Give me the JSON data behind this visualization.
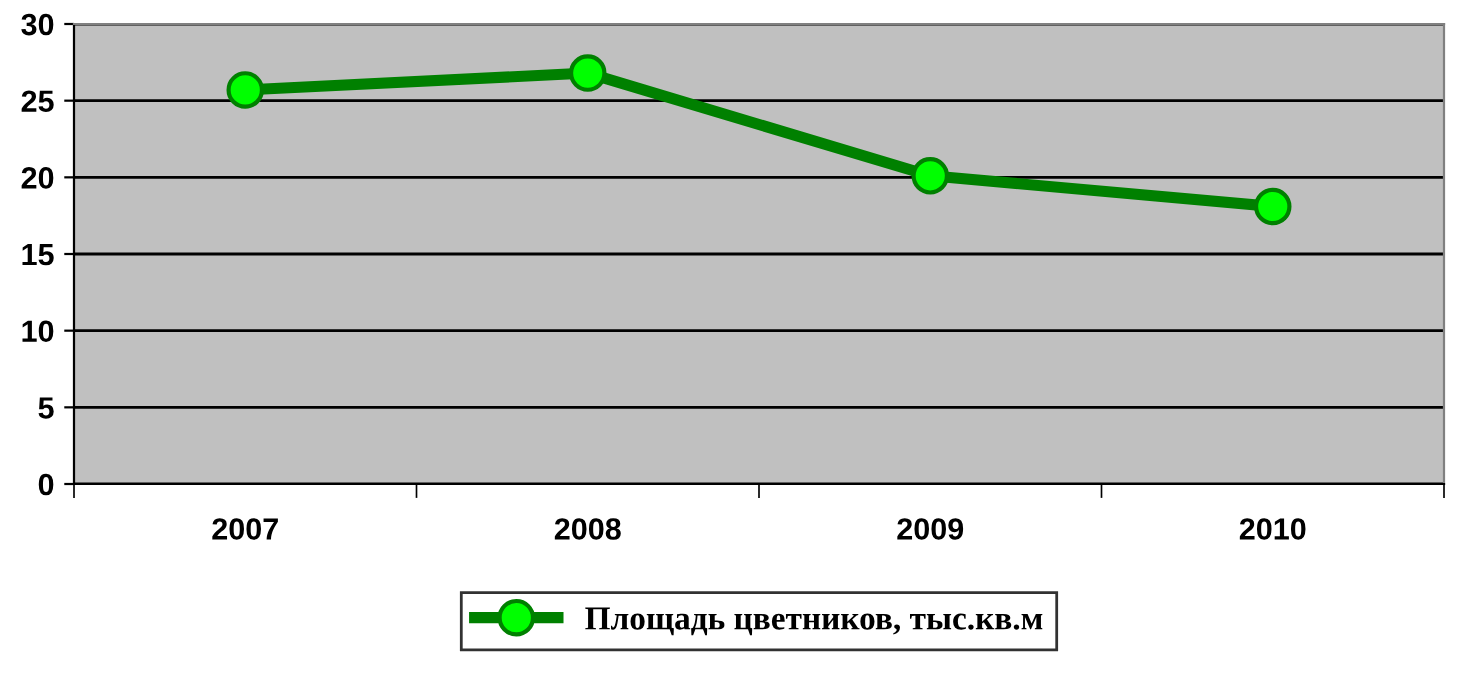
{
  "chart_data": {
    "type": "line",
    "categories": [
      "2007",
      "2008",
      "2009",
      "2010"
    ],
    "series": [
      {
        "name": "Площадь цветников, тыс.кв.м",
        "color": "#008000",
        "values": [
          25.7,
          26.8,
          20.1,
          18.1
        ]
      }
    ],
    "ylim": [
      0,
      30
    ],
    "yticks": [
      0,
      5,
      10,
      15,
      20,
      25,
      30
    ],
    "grid": "y",
    "legend": "bottom",
    "marker": "circle",
    "line_style": "solid"
  }
}
